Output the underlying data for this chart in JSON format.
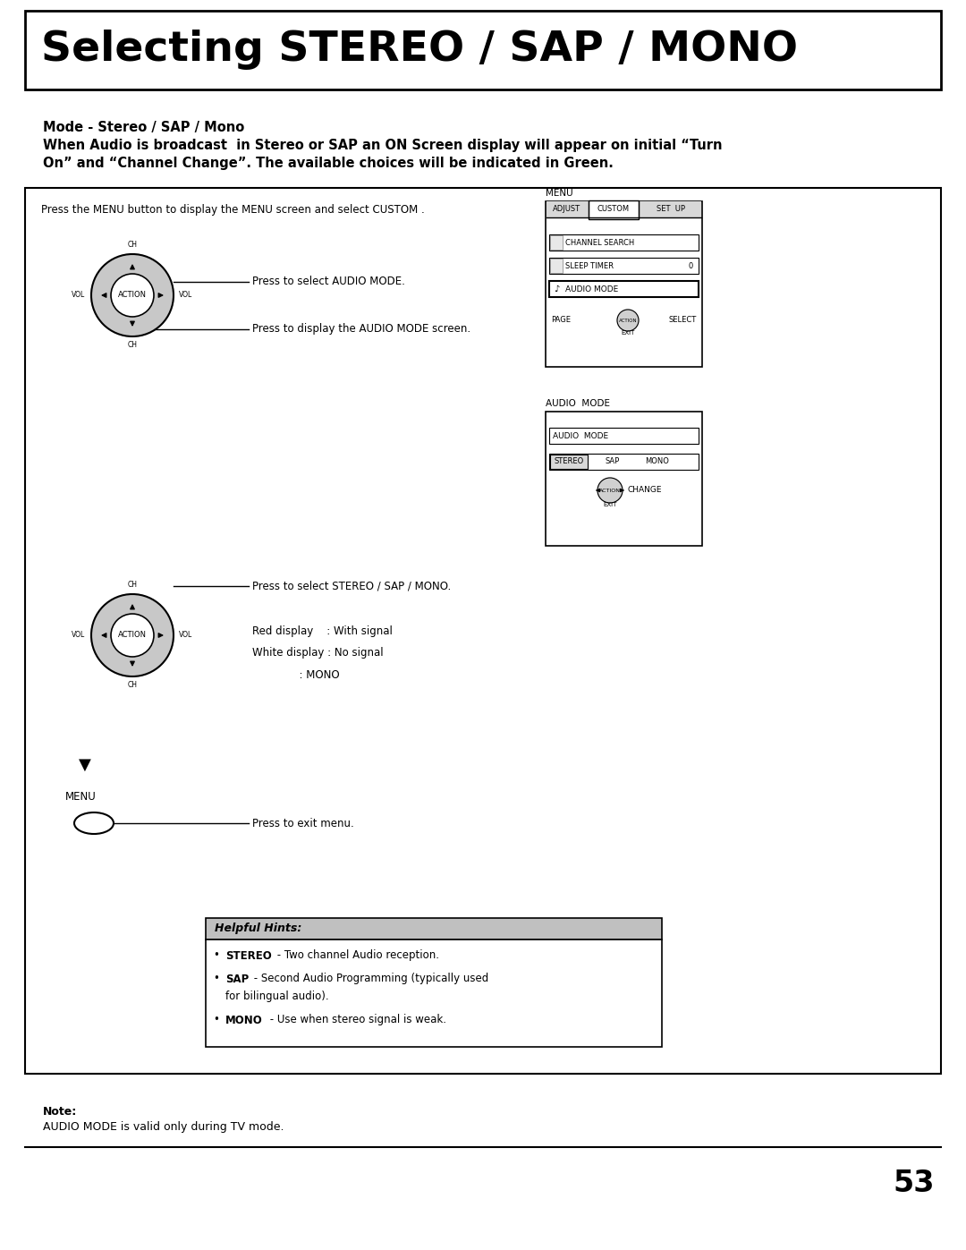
{
  "title": "Selecting STEREO / SAP / MONO",
  "mode_label": "Mode - Stereo / SAP / Mono",
  "intro_text1": "When Audio is broadcast  in Stereo or SAP an ON Screen display will appear on initial “Turn",
  "intro_text2": "On” and “Channel Change”. The available choices will be indicated in Green.",
  "note_label": "Note:",
  "note_text": "AUDIO MODE is valid only during TV mode.",
  "page_number": "53",
  "bg_color": "#ffffff",
  "hints_header_bg": "#c0c0c0",
  "hints_header_text": "Helpful Hints:",
  "press_menu_text": "Press the MENU button to display the MENU screen and select CUSTOM .",
  "press_audio_mode": "Press to select AUDIO MODE.",
  "press_audio_screen": "Press to display the AUDIO MODE screen.",
  "press_stereo_sap": "Press to select STEREO / SAP / MONO.",
  "red_display": "Red display    : With signal",
  "white_display": "White display : No signal",
  "mono_line": "              : MONO",
  "press_exit": "Press to exit menu.",
  "menu_label": "MENU"
}
